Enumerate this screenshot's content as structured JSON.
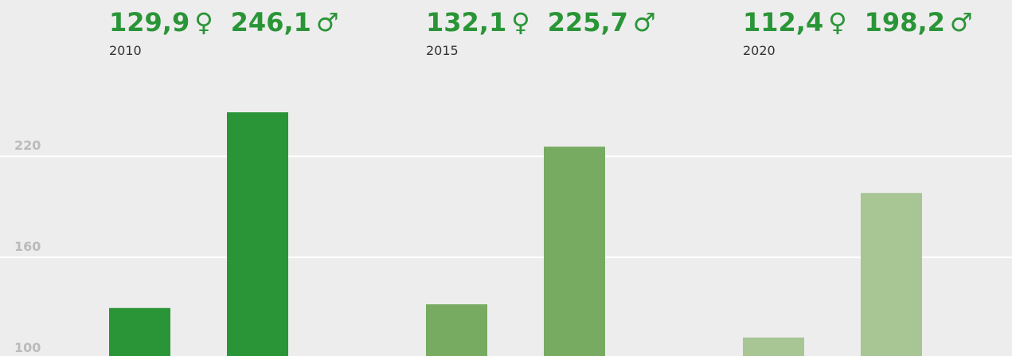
{
  "chart_data": {
    "type": "bar",
    "categories": [
      "2010",
      "2015",
      "2020"
    ],
    "colors": [
      "#2a9537",
      "#76ab61",
      "#a8c594"
    ],
    "series": [
      {
        "name": "♀",
        "values": [
          129.9,
          132.1,
          112.4
        ],
        "value_labels": [
          "129,9",
          "132,1",
          "112,4"
        ]
      },
      {
        "name": "♂",
        "values": [
          246.1,
          225.7,
          198.2
        ],
        "value_labels": [
          "246,1",
          "225,7",
          "198,2"
        ]
      }
    ],
    "ylim": [
      100,
      300
    ],
    "yticks": [
      100,
      160,
      220
    ],
    "grid": true
  }
}
